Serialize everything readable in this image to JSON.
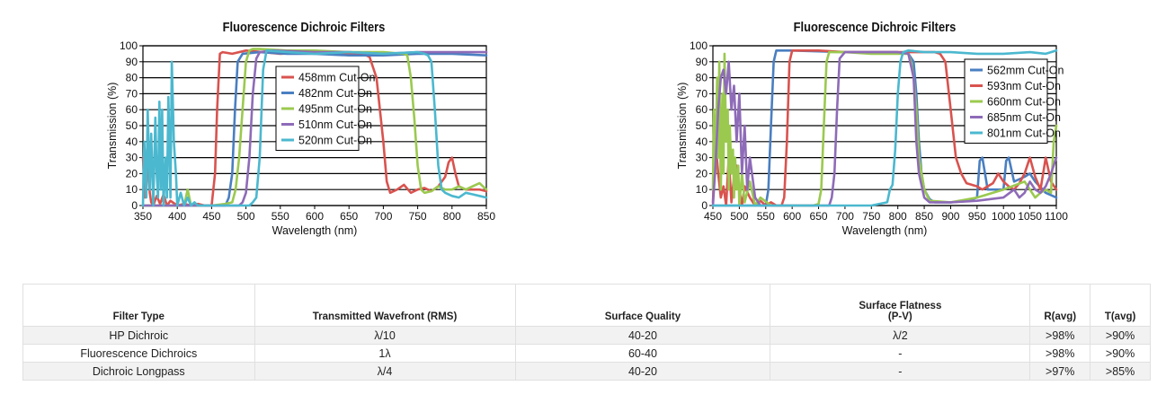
{
  "chart_data": [
    {
      "type": "line",
      "title": "Fluorescence Dichroic Filters",
      "xlabel": "Wavelength (nm)",
      "ylabel": "Transmission (%)",
      "xlim": [
        350,
        850
      ],
      "ylim": [
        0,
        100
      ],
      "xticks": [
        350,
        400,
        450,
        500,
        550,
        600,
        650,
        700,
        750,
        800,
        850
      ],
      "yticks": [
        0,
        10,
        20,
        30,
        40,
        50,
        60,
        70,
        80,
        90,
        100
      ],
      "grid": "horizontal",
      "legend_position": "top-center",
      "series": [
        {
          "name": "458mm Cut-On",
          "color": "#d9534f",
          "x": [
            350,
            353,
            356,
            360,
            362,
            365,
            370,
            375,
            380,
            385,
            390,
            400,
            410,
            420,
            430,
            440,
            450,
            455,
            458,
            462,
            466,
            480,
            500,
            550,
            600,
            650,
            670,
            680,
            690,
            700,
            705,
            710,
            720,
            730,
            740,
            750,
            760,
            770,
            780,
            790,
            795,
            800,
            805,
            810,
            820,
            830,
            840,
            850
          ],
          "y": [
            30,
            5,
            35,
            8,
            2,
            0,
            6,
            1,
            7,
            0,
            3,
            0,
            1,
            0,
            1,
            0,
            0,
            20,
            60,
            95,
            96,
            95,
            97,
            95,
            96,
            95,
            95,
            93,
            80,
            40,
            15,
            8,
            10,
            13,
            8,
            10,
            11,
            9,
            12,
            18,
            27,
            30,
            20,
            12,
            10,
            10,
            10,
            9
          ]
        },
        {
          "name": "482nm Cut-On",
          "color": "#4a7fc1",
          "x": [
            350,
            370,
            390,
            410,
            430,
            450,
            460,
            470,
            475,
            480,
            484,
            488,
            495,
            520,
            560,
            600,
            650,
            700,
            750,
            800,
            850
          ],
          "y": [
            0,
            0,
            0,
            0,
            0,
            0,
            0,
            0,
            5,
            20,
            60,
            90,
            95,
            96,
            95,
            95,
            94,
            94,
            95,
            95,
            94
          ]
        },
        {
          "name": "495nm Cut-On",
          "color": "#9bc94f",
          "x": [
            350,
            380,
            400,
            410,
            415,
            420,
            430,
            450,
            470,
            480,
            485,
            490,
            495,
            500,
            505,
            510,
            520,
            560,
            600,
            650,
            700,
            730,
            735,
            740,
            745,
            750,
            755,
            760,
            770,
            780,
            790,
            800,
            810,
            820,
            830,
            840,
            850
          ],
          "y": [
            0,
            0,
            0,
            0,
            10,
            0,
            0,
            0,
            1,
            2,
            10,
            30,
            60,
            90,
            97,
            98,
            98,
            97,
            97,
            96,
            96,
            95,
            94,
            80,
            55,
            25,
            10,
            8,
            9,
            12,
            10,
            10,
            12,
            10,
            12,
            14,
            10
          ]
        },
        {
          "name": "510nm Cut-On",
          "color": "#8e6bb8",
          "x": [
            350,
            400,
            450,
            480,
            490,
            495,
            500,
            505,
            510,
            515,
            520,
            540,
            600,
            650,
            700,
            750,
            800,
            850
          ],
          "y": [
            0,
            0,
            0,
            0,
            0,
            2,
            8,
            30,
            70,
            92,
            96,
            97,
            96,
            96,
            95,
            96,
            96,
            96
          ]
        },
        {
          "name": "520nm Cut-On",
          "color": "#4bb8cf",
          "x": [
            350,
            352,
            355,
            357,
            360,
            362,
            365,
            368,
            370,
            372,
            374,
            376,
            378,
            380,
            383,
            385,
            387,
            390,
            392,
            395,
            398,
            400,
            405,
            410,
            415,
            420,
            425,
            430,
            440,
            450,
            460,
            470,
            490,
            500,
            505,
            510,
            515,
            520,
            525,
            530,
            560,
            600,
            650,
            700,
            750,
            760,
            765,
            770,
            775,
            780,
            785,
            790,
            800,
            810,
            820,
            830,
            840,
            850
          ],
          "y": [
            0,
            40,
            5,
            60,
            10,
            45,
            0,
            55,
            20,
            5,
            65,
            10,
            60,
            0,
            30,
            5,
            68,
            5,
            90,
            40,
            20,
            0,
            8,
            0,
            5,
            0,
            2,
            0,
            0,
            0,
            0,
            0,
            0,
            0,
            0,
            2,
            5,
            30,
            85,
            97,
            96,
            95,
            96,
            95,
            96,
            95,
            94,
            90,
            60,
            25,
            10,
            8,
            6,
            5,
            8,
            7,
            6,
            5
          ]
        }
      ]
    },
    {
      "type": "line",
      "title": "Fluorescence Dichroic Filters",
      "xlabel": "Wavelength (nm)",
      "ylabel": "Transmission (%)",
      "xlim": [
        450,
        1100
      ],
      "ylim": [
        0,
        100
      ],
      "xticks": [
        450,
        500,
        550,
        600,
        650,
        700,
        750,
        800,
        850,
        900,
        950,
        1000,
        1050,
        1100
      ],
      "yticks": [
        0,
        10,
        20,
        30,
        40,
        50,
        60,
        70,
        80,
        90,
        100
      ],
      "grid": "horizontal",
      "legend_position": "top-right",
      "series": [
        {
          "name": "562mm Cut-On",
          "color": "#4a7fc1",
          "x": [
            450,
            500,
            540,
            550,
            555,
            560,
            565,
            570,
            600,
            700,
            800,
            820,
            830,
            835,
            840,
            845,
            850,
            860,
            870,
            880,
            900,
            930,
            950,
            955,
            960,
            965,
            970,
            1000,
            1005,
            1010,
            1020,
            1040,
            1050,
            1060,
            1080,
            1100
          ],
          "y": [
            0,
            0,
            0,
            0,
            10,
            50,
            90,
            97,
            97,
            96,
            96,
            95,
            90,
            70,
            40,
            20,
            10,
            4,
            2,
            2,
            2,
            3,
            5,
            28,
            30,
            20,
            10,
            10,
            28,
            30,
            15,
            18,
            20,
            15,
            8,
            5
          ]
        },
        {
          "name": "593nm Cut-On",
          "color": "#d9534f",
          "x": [
            450,
            455,
            460,
            465,
            470,
            475,
            480,
            485,
            490,
            495,
            500,
            505,
            510,
            520,
            530,
            540,
            550,
            560,
            570,
            580,
            585,
            590,
            595,
            600,
            650,
            700,
            800,
            850,
            870,
            880,
            890,
            900,
            910,
            920,
            930,
            950,
            960,
            970,
            980,
            990,
            1000,
            1010,
            1020,
            1030,
            1040,
            1050,
            1060,
            1070,
            1080,
            1090,
            1100
          ],
          "y": [
            2,
            40,
            20,
            5,
            12,
            0,
            30,
            2,
            18,
            25,
            10,
            0,
            12,
            5,
            0,
            3,
            0,
            2,
            0,
            0,
            5,
            40,
            90,
            97,
            97,
            96,
            96,
            96,
            96,
            95,
            90,
            60,
            30,
            20,
            14,
            12,
            10,
            12,
            14,
            20,
            15,
            12,
            10,
            14,
            20,
            30,
            18,
            10,
            30,
            15,
            10
          ]
        },
        {
          "name": "660nm Cut-On",
          "color": "#9bc94f",
          "x": [
            450,
            452,
            455,
            458,
            460,
            462,
            465,
            468,
            470,
            472,
            475,
            478,
            480,
            482,
            485,
            488,
            490,
            492,
            495,
            498,
            500,
            505,
            510,
            520,
            530,
            540,
            560,
            600,
            640,
            650,
            655,
            660,
            665,
            670,
            700,
            750,
            800,
            820,
            825,
            830,
            835,
            840,
            850,
            860,
            900,
            950,
            1000,
            1040,
            1050,
            1060,
            1070,
            1080,
            1090,
            1095,
            1100
          ],
          "y": [
            10,
            60,
            20,
            80,
            30,
            90,
            10,
            70,
            20,
            95,
            40,
            60,
            10,
            50,
            20,
            35,
            5,
            30,
            10,
            25,
            0,
            20,
            2,
            15,
            0,
            5,
            0,
            0,
            0,
            1,
            10,
            50,
            90,
            96,
            96,
            95,
            95,
            95,
            90,
            80,
            60,
            30,
            10,
            3,
            2,
            5,
            10,
            15,
            10,
            5,
            8,
            10,
            8,
            40,
            50
          ]
        },
        {
          "name": "685nm Cut-On",
          "color": "#8e6bb8",
          "x": [
            450,
            455,
            460,
            465,
            470,
            475,
            480,
            485,
            490,
            495,
            500,
            505,
            510,
            515,
            520,
            530,
            540,
            560,
            600,
            650,
            670,
            675,
            680,
            685,
            690,
            700,
            750,
            800,
            820,
            830,
            835,
            840,
            850,
            860,
            900,
            950,
            1000,
            1020,
            1030,
            1040,
            1050,
            1060,
            1070,
            1080,
            1090,
            1100
          ],
          "y": [
            0,
            25,
            60,
            80,
            85,
            70,
            90,
            60,
            75,
            40,
            70,
            20,
            50,
            10,
            30,
            5,
            0,
            0,
            0,
            0,
            0,
            5,
            20,
            60,
            92,
            96,
            96,
            96,
            95,
            80,
            40,
            20,
            5,
            2,
            2,
            3,
            5,
            10,
            5,
            8,
            15,
            10,
            8,
            12,
            20,
            30
          ]
        },
        {
          "name": "801nm Cut-On",
          "color": "#4bb8cf",
          "x": [
            450,
            500,
            550,
            600,
            650,
            700,
            750,
            780,
            785,
            790,
            795,
            800,
            805,
            810,
            820,
            850,
            900,
            950,
            1000,
            1050,
            1080,
            1090,
            1100
          ],
          "y": [
            0,
            0,
            0,
            0,
            0,
            0,
            0,
            2,
            10,
            13,
            35,
            70,
            90,
            96,
            97,
            96,
            96,
            95,
            95,
            96,
            95,
            96,
            97
          ]
        }
      ]
    }
  ],
  "spec_table": {
    "headers": {
      "filter_type": "Filter Type",
      "wavefront": "Transmitted Wavefront (RMS)",
      "surface_quality": "Surface Quality",
      "flatness_line1": "Surface Flatness",
      "flatness_line2": "(P-V)",
      "r_avg": "R(avg)",
      "t_avg": "T(avg)"
    },
    "rows": [
      {
        "filter_type": "HP Dichroic",
        "wavefront": "λ/10",
        "surface_quality": "40-20",
        "flatness": "λ/2",
        "r_avg": ">98%",
        "t_avg": ">90%"
      },
      {
        "filter_type": "Fluorescence Dichroics",
        "wavefront": "1λ",
        "surface_quality": "60-40",
        "flatness": "-",
        "r_avg": ">98%",
        "t_avg": ">90%"
      },
      {
        "filter_type": "Dichroic Longpass",
        "wavefront": "λ/4",
        "surface_quality": "40-20",
        "flatness": "-",
        "r_avg": ">97%",
        "t_avg": ">85%"
      }
    ]
  }
}
